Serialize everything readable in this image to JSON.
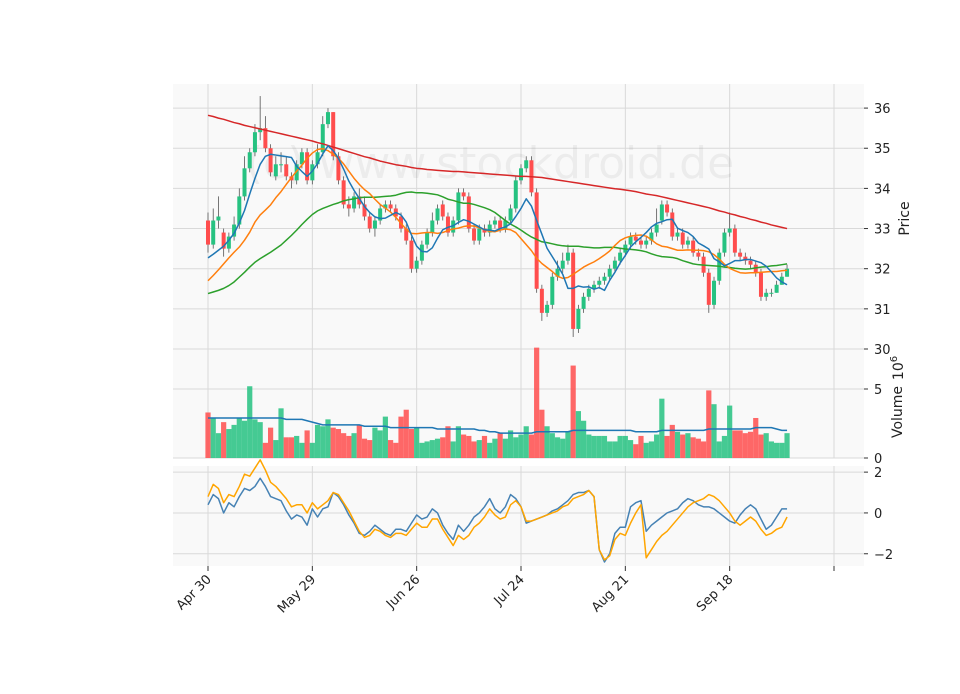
{
  "chart_data": {
    "type": "candlestick",
    "watermark": "(c) www.stockdroid.de",
    "colors": {
      "up": "#26c281",
      "down": "#ff4d4d",
      "ma_short": "#1f77b4",
      "ma_mid": "#ff7f0e",
      "ma_long": "#2ca02c",
      "ma_200": "#d62728",
      "volume_ma": "#1f77b4",
      "macd": "#4682b4",
      "signal": "#ffa500",
      "panel_bg": "#f9f9f9",
      "grid": "#d9d9d9"
    },
    "x_ticks": [
      {
        "label": "Apr 30",
        "index": 0
      },
      {
        "label": "May 29",
        "index": 20
      },
      {
        "label": "Jun 26",
        "index": 40
      },
      {
        "label": "Jul 24",
        "index": 60
      },
      {
        "label": "Aug 21",
        "index": 80
      },
      {
        "label": "Sep 18",
        "index": 100
      },
      {
        "label": "",
        "index": 120
      }
    ],
    "price_panel": {
      "ylabel": "Price",
      "ylim": [
        30,
        36.6
      ],
      "yticks": [
        30,
        31,
        32,
        33,
        34,
        35,
        36
      ]
    },
    "volume_panel": {
      "ylabel": "Volume",
      "yexp": "6",
      "ylim": [
        0,
        7.9
      ],
      "yticks": [
        0,
        5
      ]
    },
    "macd_panel": {
      "ylim": [
        -2.6,
        2.3
      ],
      "yticks": [
        -2,
        0,
        2
      ],
      "ytick_labels": [
        "−2",
        "0",
        "2"
      ]
    },
    "closes": [
      32.6,
      33.2,
      33.3,
      32.5,
      32.8,
      33.1,
      33.8,
      34.5,
      34.9,
      35.4,
      35.5,
      35.0,
      34.4,
      34.6,
      34.6,
      34.3,
      34.2,
      34.6,
      34.9,
      34.2,
      34.6,
      34.9,
      35.6,
      35.9,
      34.8,
      34.2,
      33.6,
      33.5,
      33.8,
      33.6,
      33.3,
      33.0,
      33.2,
      33.5,
      33.6,
      33.5,
      33.3,
      33.0,
      32.7,
      32.0,
      32.2,
      32.6,
      32.9,
      33.2,
      33.5,
      33.3,
      32.9,
      33.2,
      33.9,
      33.8,
      33.0,
      32.7,
      33.0,
      32.9,
      33.1,
      33.2,
      33.0,
      33.2,
      33.5,
      34.2,
      34.5,
      34.7,
      33.9,
      31.5,
      30.9,
      31.1,
      31.8,
      32.0,
      32.2,
      32.4,
      30.5,
      31.0,
      31.3,
      31.5,
      31.6,
      31.7,
      31.8,
      32.0,
      32.2,
      32.4,
      32.6,
      32.8,
      32.7,
      32.6,
      32.7,
      32.9,
      33.1,
      33.6,
      33.4,
      32.8,
      32.9,
      32.6,
      32.7,
      32.4,
      32.3,
      31.9,
      31.1,
      31.7,
      32.4,
      32.9,
      33.0,
      32.4,
      32.3,
      32.2,
      32.1,
      31.9,
      31.3,
      31.4,
      31.4,
      31.6,
      31.8,
      32.0
    ],
    "opens": [
      33.2,
      32.6,
      33.2,
      32.9,
      32.5,
      32.8,
      33.1,
      33.8,
      34.5,
      34.9,
      35.4,
      35.5,
      35.0,
      34.3,
      34.6,
      34.6,
      34.3,
      34.2,
      34.6,
      34.9,
      34.2,
      34.6,
      34.9,
      35.6,
      35.9,
      34.8,
      34.2,
      33.6,
      33.5,
      33.8,
      33.6,
      33.3,
      33.0,
      33.2,
      33.5,
      33.6,
      33.5,
      33.3,
      33.0,
      32.7,
      32.0,
      32.2,
      32.6,
      32.9,
      33.2,
      33.6,
      33.3,
      32.9,
      33.2,
      33.9,
      33.8,
      33.0,
      32.7,
      33.0,
      32.9,
      33.1,
      33.2,
      33.0,
      33.2,
      33.5,
      34.2,
      34.5,
      34.7,
      33.9,
      31.5,
      30.9,
      31.1,
      31.8,
      32.0,
      32.2,
      32.4,
      30.5,
      31.0,
      31.3,
      31.5,
      31.6,
      31.7,
      31.8,
      32.0,
      32.2,
      32.4,
      32.6,
      32.8,
      32.7,
      32.6,
      32.7,
      32.9,
      33.2,
      33.6,
      33.4,
      32.8,
      32.9,
      32.6,
      32.7,
      32.4,
      32.3,
      31.9,
      31.1,
      31.7,
      32.4,
      32.9,
      33.0,
      32.4,
      32.3,
      32.2,
      32.1,
      31.9,
      31.3,
      31.4,
      31.4,
      31.6,
      31.8
    ],
    "highs": [
      33.4,
      33.5,
      33.8,
      33.0,
      32.9,
      33.3,
      34.0,
      34.8,
      35.0,
      35.6,
      36.3,
      35.8,
      35.1,
      34.8,
      34.9,
      34.8,
      34.4,
      34.7,
      35.0,
      35.0,
      34.7,
      35.1,
      35.8,
      36.0,
      35.9,
      34.9,
      34.3,
      33.8,
      33.9,
      34.0,
      33.8,
      33.4,
      33.3,
      33.6,
      33.7,
      33.7,
      33.6,
      33.4,
      33.1,
      32.8,
      32.3,
      32.7,
      33.0,
      33.4,
      33.6,
      33.7,
      33.4,
      33.3,
      34.0,
      34.0,
      33.9,
      33.1,
      33.1,
      33.1,
      33.2,
      33.3,
      33.3,
      33.3,
      33.6,
      34.3,
      34.6,
      34.8,
      34.8,
      34.0,
      31.6,
      31.2,
      31.9,
      32.2,
      32.4,
      32.6,
      32.5,
      31.1,
      31.4,
      31.6,
      31.7,
      31.8,
      31.9,
      32.1,
      32.3,
      32.5,
      32.7,
      32.9,
      32.9,
      32.8,
      32.8,
      33.0,
      33.5,
      33.7,
      33.7,
      33.5,
      33.0,
      33.0,
      32.8,
      32.8,
      32.5,
      32.4,
      32.0,
      31.8,
      32.5,
      33.0,
      33.4,
      33.1,
      32.5,
      32.4,
      32.3,
      32.2,
      32.0,
      31.5,
      31.5,
      31.7,
      31.9,
      32.1
    ],
    "lows": [
      32.4,
      32.5,
      33.0,
      32.3,
      32.4,
      32.7,
      33.0,
      33.7,
      34.4,
      34.8,
      35.2,
      34.9,
      34.3,
      34.2,
      34.4,
      34.2,
      34.0,
      34.1,
      34.5,
      34.1,
      34.1,
      34.5,
      34.8,
      35.5,
      34.7,
      34.1,
      33.5,
      33.3,
      33.4,
      33.5,
      33.2,
      32.9,
      32.8,
      33.1,
      33.4,
      33.4,
      33.2,
      32.9,
      32.6,
      31.9,
      31.9,
      32.1,
      32.5,
      32.8,
      33.1,
      33.2,
      32.8,
      32.8,
      33.1,
      33.7,
      32.9,
      32.6,
      32.6,
      32.8,
      32.8,
      33.0,
      32.9,
      32.9,
      33.1,
      33.4,
      34.1,
      34.4,
      33.8,
      31.4,
      30.7,
      30.8,
      31.0,
      31.7,
      31.9,
      32.1,
      30.3,
      30.4,
      30.9,
      31.2,
      31.4,
      31.5,
      31.6,
      31.7,
      31.9,
      32.1,
      32.3,
      32.5,
      32.6,
      32.5,
      32.5,
      32.6,
      32.8,
      33.1,
      33.3,
      32.7,
      32.7,
      32.5,
      32.5,
      32.3,
      32.2,
      31.8,
      30.9,
      31.0,
      31.6,
      32.3,
      32.8,
      32.3,
      32.2,
      32.1,
      32.0,
      31.8,
      31.2,
      31.2,
      31.3,
      31.4,
      31.6,
      31.8
    ],
    "volumes": [
      3.3,
      2.9,
      1.8,
      2.6,
      2.1,
      2.4,
      2.9,
      2.7,
      5.2,
      2.8,
      2.6,
      1.1,
      2.2,
      1.3,
      3.6,
      1.5,
      1.5,
      1.6,
      1.1,
      2.0,
      1.1,
      2.4,
      2.3,
      2.8,
      2.2,
      2.1,
      1.8,
      1.6,
      1.8,
      2.4,
      1.4,
      1.3,
      2.2,
      2.0,
      3.0,
      1.3,
      1.1,
      3.0,
      3.5,
      2.1,
      2.2,
      1.1,
      1.2,
      1.3,
      1.4,
      1.5,
      2.3,
      1.2,
      2.3,
      1.7,
      1.6,
      1.2,
      1.3,
      1.6,
      1.1,
      1.4,
      1.8,
      1.4,
      2.0,
      1.5,
      1.7,
      2.3,
      1.7,
      8.0,
      3.5,
      2.3,
      1.8,
      1.5,
      1.4,
      1.9,
      6.7,
      3.4,
      2.7,
      1.7,
      1.6,
      1.6,
      1.6,
      1.2,
      1.2,
      1.6,
      1.6,
      1.3,
      1.0,
      1.6,
      1.1,
      1.2,
      1.7,
      4.3,
      1.6,
      2.4,
      1.9,
      1.7,
      1.8,
      1.5,
      1.4,
      1.2,
      4.9,
      3.9,
      1.2,
      1.6,
      3.8,
      2.0,
      2.0,
      1.8,
      1.9,
      2.9,
      1.7,
      1.8,
      1.2,
      1.1,
      1.1,
      1.8
    ],
    "ma_short": [
      32.27,
      32.36,
      32.46,
      32.56,
      32.71,
      32.88,
      33.14,
      33.45,
      33.86,
      34.25,
      34.6,
      34.8,
      34.85,
      34.83,
      34.81,
      34.79,
      34.77,
      34.55,
      34.42,
      34.3,
      34.43,
      34.62,
      34.86,
      35.06,
      34.94,
      34.75,
      34.48,
      34.18,
      33.95,
      33.75,
      33.55,
      33.4,
      33.29,
      33.25,
      33.26,
      33.33,
      33.4,
      33.34,
      33.16,
      32.84,
      32.56,
      32.43,
      32.42,
      32.52,
      32.76,
      32.97,
      33.03,
      33.07,
      33.15,
      33.22,
      33.18,
      33.11,
      33.04,
      32.97,
      32.96,
      32.94,
      33.0,
      33.04,
      33.12,
      33.3,
      33.5,
      33.74,
      33.56,
      33.2,
      32.86,
      32.51,
      32.3,
      32.09,
      31.86,
      31.51,
      31.51,
      31.57,
      31.54,
      31.55,
      31.49,
      31.53,
      31.46,
      31.71,
      31.91,
      32.14,
      32.33,
      32.54,
      32.67,
      32.78,
      32.9,
      33.04,
      33.13,
      33.17,
      33.22,
      33.23,
      33.01,
      32.95,
      32.9,
      32.8,
      32.64,
      32.57,
      32.49,
      32.25,
      32.17,
      32.07,
      32.13,
      32.2,
      32.2,
      32.23,
      32.23,
      32.19,
      32.15,
      32.06,
      31.92,
      31.77,
      31.67,
      31.6
    ],
    "ma_mid": [
      31.7,
      31.83,
      31.97,
      32.12,
      32.27,
      32.41,
      32.54,
      32.71,
      32.91,
      33.16,
      33.34,
      33.46,
      33.59,
      33.77,
      33.92,
      34.1,
      34.27,
      34.43,
      34.58,
      34.75,
      34.88,
      34.97,
      34.99,
      34.94,
      34.85,
      34.75,
      34.61,
      34.43,
      34.25,
      34.1,
      33.97,
      33.87,
      33.73,
      33.6,
      33.51,
      33.41,
      33.28,
      33.13,
      32.98,
      32.88,
      32.87,
      32.89,
      32.9,
      32.9,
      32.88,
      32.9,
      32.95,
      32.99,
      33.01,
      33.05,
      33.07,
      33.06,
      33.02,
      32.97,
      32.93,
      32.92,
      32.96,
      32.99,
      32.97,
      32.9,
      32.75,
      32.6,
      32.45,
      32.26,
      32.13,
      32.03,
      31.93,
      31.81,
      31.76,
      31.78,
      31.86,
      31.95,
      32.04,
      32.11,
      32.17,
      32.25,
      32.34,
      32.44,
      32.58,
      32.7,
      32.77,
      32.81,
      32.83,
      32.84,
      32.81,
      32.72,
      32.62,
      32.56,
      32.54,
      32.5,
      32.46,
      32.46,
      32.47,
      32.46,
      32.46,
      32.45,
      32.42,
      32.35,
      32.24,
      32.11,
      32.01,
      31.95,
      31.9,
      31.89,
      31.9,
      31.9,
      31.91,
      31.92,
      31.93,
      31.93,
      31.95,
      31.96
    ],
    "ma_long": [
      31.38,
      31.42,
      31.46,
      31.51,
      31.58,
      31.67,
      31.79,
      31.91,
      32.04,
      32.16,
      32.25,
      32.33,
      32.41,
      32.5,
      32.59,
      32.71,
      32.83,
      32.96,
      33.1,
      33.23,
      33.35,
      33.44,
      33.5,
      33.55,
      33.6,
      33.64,
      33.69,
      33.72,
      33.74,
      33.77,
      33.78,
      33.78,
      33.78,
      33.79,
      33.8,
      33.81,
      33.83,
      33.87,
      33.9,
      33.91,
      33.89,
      33.89,
      33.88,
      33.86,
      33.84,
      33.79,
      33.73,
      33.7,
      33.66,
      33.63,
      33.63,
      33.6,
      33.56,
      33.52,
      33.47,
      33.4,
      33.3,
      33.2,
      33.11,
      33.04,
      32.96,
      32.87,
      32.79,
      32.73,
      32.67,
      32.65,
      32.62,
      32.59,
      32.57,
      32.56,
      32.56,
      32.56,
      32.54,
      32.53,
      32.52,
      32.52,
      32.53,
      32.53,
      32.53,
      32.51,
      32.49,
      32.48,
      32.47,
      32.45,
      32.42,
      32.37,
      32.33,
      32.3,
      32.29,
      32.28,
      32.25,
      32.2,
      32.16,
      32.12,
      32.1,
      32.09,
      32.08,
      32.07,
      32.06,
      32.04,
      32.03,
      32.01,
      32.0,
      31.99,
      32.0,
      32.02,
      32.04,
      32.05,
      32.07,
      32.08,
      32.1,
      32.12
    ],
    "ma_200": [
      35.82,
      35.79,
      35.75,
      35.72,
      35.68,
      35.64,
      35.61,
      35.57,
      35.54,
      35.51,
      35.48,
      35.45,
      35.42,
      35.39,
      35.36,
      35.33,
      35.3,
      35.27,
      35.24,
      35.21,
      35.18,
      35.14,
      35.11,
      35.07,
      35.03,
      34.99,
      34.95,
      34.91,
      34.87,
      34.83,
      34.79,
      34.76,
      34.72,
      34.68,
      34.65,
      34.62,
      34.59,
      34.57,
      34.55,
      34.52,
      34.5,
      34.49,
      34.47,
      34.46,
      34.45,
      34.44,
      34.43,
      34.42,
      34.42,
      34.41,
      34.4,
      34.39,
      34.38,
      34.37,
      34.36,
      34.35,
      34.34,
      34.33,
      34.32,
      34.31,
      34.3,
      34.3,
      34.29,
      34.28,
      34.27,
      34.25,
      34.23,
      34.21,
      34.19,
      34.17,
      34.15,
      34.13,
      34.11,
      34.09,
      34.07,
      34.05,
      34.03,
      34.01,
      33.99,
      33.98,
      33.96,
      33.94,
      33.92,
      33.89,
      33.86,
      33.84,
      33.82,
      33.79,
      33.76,
      33.73,
      33.7,
      33.67,
      33.64,
      33.61,
      33.58,
      33.55,
      33.52,
      33.48,
      33.44,
      33.41,
      33.37,
      33.34,
      33.3,
      33.27,
      33.23,
      33.2,
      33.16,
      33.13,
      33.09,
      33.06,
      33.03,
      33.0
    ],
    "volume_ma": [
      2.9,
      2.9,
      2.9,
      2.9,
      2.9,
      2.9,
      2.9,
      2.9,
      2.9,
      2.9,
      2.9,
      2.9,
      2.9,
      2.9,
      2.9,
      2.8,
      2.8,
      2.8,
      2.8,
      2.7,
      2.6,
      2.5,
      2.4,
      2.4,
      2.4,
      2.4,
      2.4,
      2.4,
      2.4,
      2.4,
      2.3,
      2.3,
      2.3,
      2.3,
      2.3,
      2.2,
      2.2,
      2.2,
      2.2,
      2.2,
      2.2,
      2.2,
      2.2,
      2.2,
      2.1,
      2.1,
      2.1,
      2.1,
      2.1,
      2.1,
      2.1,
      2.1,
      2.0,
      2.0,
      1.9,
      1.9,
      1.8,
      1.8,
      1.8,
      1.8,
      1.8,
      1.8,
      1.8,
      1.9,
      1.9,
      1.9,
      1.9,
      1.9,
      1.9,
      1.9,
      2.0,
      2.0,
      2.0,
      2.0,
      2.0,
      2.0,
      2.0,
      2.0,
      2.0,
      2.0,
      2.0,
      2.0,
      1.9,
      1.9,
      1.9,
      1.9,
      1.9,
      2.0,
      2.0,
      2.0,
      2.0,
      2.0,
      2.0,
      2.0,
      2.0,
      2.0,
      2.1,
      2.1,
      2.1,
      2.1,
      2.1,
      2.1,
      2.1,
      2.1,
      2.1,
      2.2,
      2.2,
      2.2,
      2.2,
      2.1,
      2.0,
      2.0
    ],
    "macd": [
      0.4,
      0.9,
      0.7,
      0.0,
      0.5,
      0.3,
      0.8,
      1.2,
      1.1,
      1.3,
      1.7,
      1.3,
      0.8,
      0.7,
      0.6,
      0.1,
      -0.3,
      -0.1,
      -0.2,
      -0.6,
      0.2,
      -0.2,
      0.2,
      0.3,
      1.0,
      0.8,
      0.4,
      -0.1,
      -0.5,
      -1.0,
      -1.1,
      -0.9,
      -0.6,
      -0.8,
      -1.0,
      -1.1,
      -0.8,
      -0.8,
      -0.9,
      -0.5,
      -0.1,
      -0.3,
      -0.2,
      0.2,
      0.0,
      -0.6,
      -1.0,
      -1.3,
      -0.6,
      -0.9,
      -0.6,
      -0.2,
      0.0,
      0.3,
      0.7,
      0.2,
      0.0,
      0.3,
      0.9,
      0.7,
      0.3,
      -0.5,
      -0.4,
      -0.3,
      -0.2,
      -0.1,
      0.1,
      0.2,
      0.4,
      0.6,
      0.9,
      1.0,
      1.0,
      1.1,
      0.8,
      -1.8,
      -2.4,
      -2.0,
      -1.0,
      -0.7,
      -0.7,
      0.3,
      0.5,
      0.6,
      -0.9,
      -0.6,
      -0.4,
      -0.2,
      0.0,
      0.1,
      0.2,
      0.5,
      0.7,
      0.6,
      0.4,
      0.3,
      0.3,
      0.2,
      0.0,
      -0.2,
      -0.4,
      -0.5,
      -0.1,
      0.2,
      0.4,
      0.2,
      -0.3,
      -0.8,
      -0.6,
      -0.2,
      0.2,
      0.2
    ],
    "signal": [
      0.8,
      1.4,
      1.2,
      0.5,
      0.9,
      0.8,
      1.3,
      1.9,
      1.8,
      2.2,
      2.6,
      2.1,
      1.5,
      1.3,
      1.0,
      0.7,
      0.3,
      0.4,
      0.4,
      0.0,
      0.5,
      0.2,
      0.4,
      0.6,
      1.0,
      0.9,
      0.5,
      0.1,
      -0.4,
      -0.9,
      -1.2,
      -1.1,
      -0.8,
      -0.9,
      -1.1,
      -1.2,
      -1.0,
      -1.0,
      -1.1,
      -0.8,
      -0.5,
      -0.7,
      -0.7,
      -0.3,
      -0.3,
      -0.8,
      -1.2,
      -1.6,
      -1.1,
      -1.3,
      -1.1,
      -0.7,
      -0.5,
      -0.2,
      0.2,
      -0.1,
      -0.3,
      -0.2,
      0.4,
      0.6,
      0.3,
      -0.4,
      -0.4,
      -0.3,
      -0.2,
      -0.1,
      0.0,
      0.1,
      0.3,
      0.4,
      0.7,
      0.8,
      0.9,
      1.1,
      0.8,
      -1.8,
      -2.3,
      -2.1,
      -1.3,
      -1.0,
      -1.1,
      -0.5,
      0.0,
      0.4,
      -2.2,
      -1.8,
      -1.4,
      -1.1,
      -0.9,
      -0.6,
      -0.3,
      0.0,
      0.3,
      0.5,
      0.6,
      0.7,
      0.9,
      0.8,
      0.6,
      0.3,
      0.0,
      -0.4,
      -0.6,
      -0.4,
      -0.2,
      -0.4,
      -0.8,
      -1.1,
      -1.0,
      -0.8,
      -0.7,
      -0.2
    ]
  }
}
